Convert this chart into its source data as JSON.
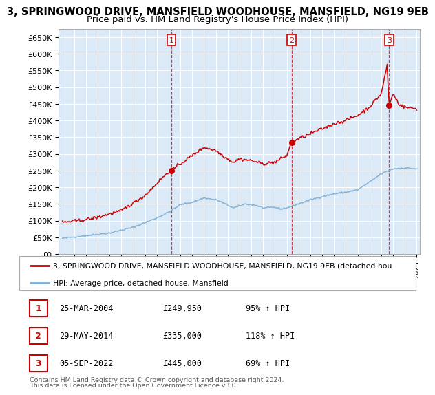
{
  "title": "3, SPRINGWOOD DRIVE, MANSFIELD WOODHOUSE, MANSFIELD, NG19 9EB",
  "subtitle": "Price paid vs. HM Land Registry's House Price Index (HPI)",
  "title_fontsize": 10.5,
  "subtitle_fontsize": 9.5,
  "ylabel_ticks": [
    "£0",
    "£50K",
    "£100K",
    "£150K",
    "£200K",
    "£250K",
    "£300K",
    "£350K",
    "£400K",
    "£450K",
    "£500K",
    "£550K",
    "£600K",
    "£650K"
  ],
  "ytick_values": [
    0,
    50000,
    100000,
    150000,
    200000,
    250000,
    300000,
    350000,
    400000,
    450000,
    500000,
    550000,
    600000,
    650000
  ],
  "ylim": [
    0,
    675000
  ],
  "background_color": "#ffffff",
  "plot_bg_color": "#dce9f7",
  "grid_color": "#ffffff",
  "sale_color": "#cc0000",
  "hpi_color": "#7aadd4",
  "legend_label_sale": "3, SPRINGWOOD DRIVE, MANSFIELD WOODHOUSE, MANSFIELD, NG19 9EB (detached hou",
  "legend_label_hpi": "HPI: Average price, detached house, Mansfield",
  "sales": [
    {
      "label": "1",
      "date_num": 2004.23,
      "price": 249950
    },
    {
      "label": "2",
      "date_num": 2014.41,
      "price": 335000
    },
    {
      "label": "3",
      "date_num": 2022.68,
      "price": 445000
    }
  ],
  "table_rows": [
    [
      "1",
      "25-MAR-2004",
      "£249,950",
      "95% ↑ HPI"
    ],
    [
      "2",
      "29-MAY-2014",
      "£335,000",
      "118% ↑ HPI"
    ],
    [
      "3",
      "05-SEP-2022",
      "£445,000",
      "69% ↑ HPI"
    ]
  ],
  "footer_line1": "Contains HM Land Registry data © Crown copyright and database right 2024.",
  "footer_line2": "This data is licensed under the Open Government Licence v3.0.",
  "hpi_anchors": {
    "1995.0": 47000,
    "1997.0": 55000,
    "1999.0": 63000,
    "2001.0": 80000,
    "2003.0": 108000,
    "2004.0": 125000,
    "2005.0": 148000,
    "2006.0": 155000,
    "2007.0": 168000,
    "2008.0": 162000,
    "2008.5": 155000,
    "2009.5": 138000,
    "2010.5": 150000,
    "2011.5": 145000,
    "2012.0": 138000,
    "2013.0": 140000,
    "2013.5": 135000,
    "2014.0": 138000,
    "2015.0": 150000,
    "2016.0": 162000,
    "2017.0": 172000,
    "2018.0": 180000,
    "2019.0": 185000,
    "2020.0": 192000,
    "2021.0": 215000,
    "2022.0": 240000,
    "2023.0": 255000,
    "2024.0": 258000,
    "2025.0": 255000
  },
  "sale_anchors": {
    "1995.0": 95000,
    "1996.5": 100000,
    "1998.0": 110000,
    "2000.0": 130000,
    "2002.0": 175000,
    "2003.5": 230000,
    "2004.23": 249950,
    "2005.0": 270000,
    "2006.0": 295000,
    "2007.0": 320000,
    "2008.0": 310000,
    "2009.0": 285000,
    "2009.5": 275000,
    "2010.0": 285000,
    "2011.0": 280000,
    "2012.0": 270000,
    "2013.0": 275000,
    "2014.0": 295000,
    "2014.41": 335000,
    "2015.0": 345000,
    "2016.0": 360000,
    "2017.0": 375000,
    "2018.0": 390000,
    "2019.0": 400000,
    "2020.0": 415000,
    "2021.0": 440000,
    "2022.0": 480000,
    "2022.5": 565000,
    "2022.68": 445000,
    "2023.0": 480000,
    "2023.5": 450000,
    "2024.0": 440000,
    "2025.0": 435000
  }
}
